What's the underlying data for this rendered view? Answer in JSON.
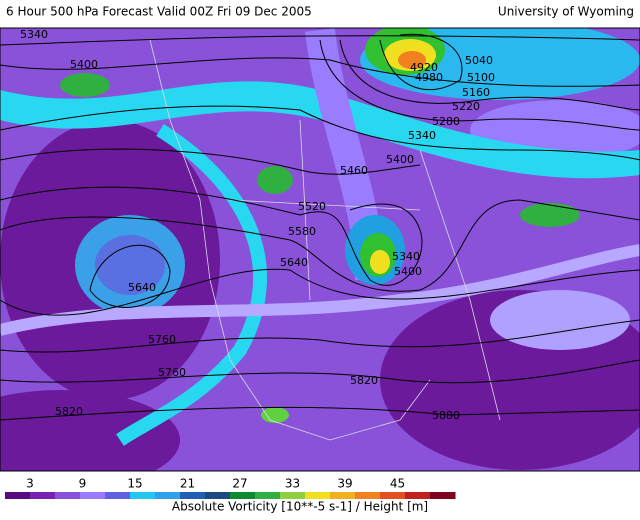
{
  "header": {
    "title": "6 Hour 500 hPa Forecast Valid 00Z Fri 09 Dec 2005",
    "source": "University of Wyoming"
  },
  "contour_labels": [
    "5340",
    "5400",
    "4920",
    "4980",
    "5040",
    "5100",
    "5160",
    "5220",
    "5280",
    "5340",
    "5400",
    "5460",
    "5520",
    "5580",
    "5640",
    "5340",
    "5400",
    "5640",
    "5760",
    "5760",
    "5820",
    "5820",
    "5880"
  ],
  "colorbar": {
    "ticks": [
      "3",
      "9",
      "15",
      "21",
      "27",
      "33",
      "39",
      "45"
    ],
    "caption": "Absolute Vorticity [10**-5 s-1] / Height [m]"
  }
}
